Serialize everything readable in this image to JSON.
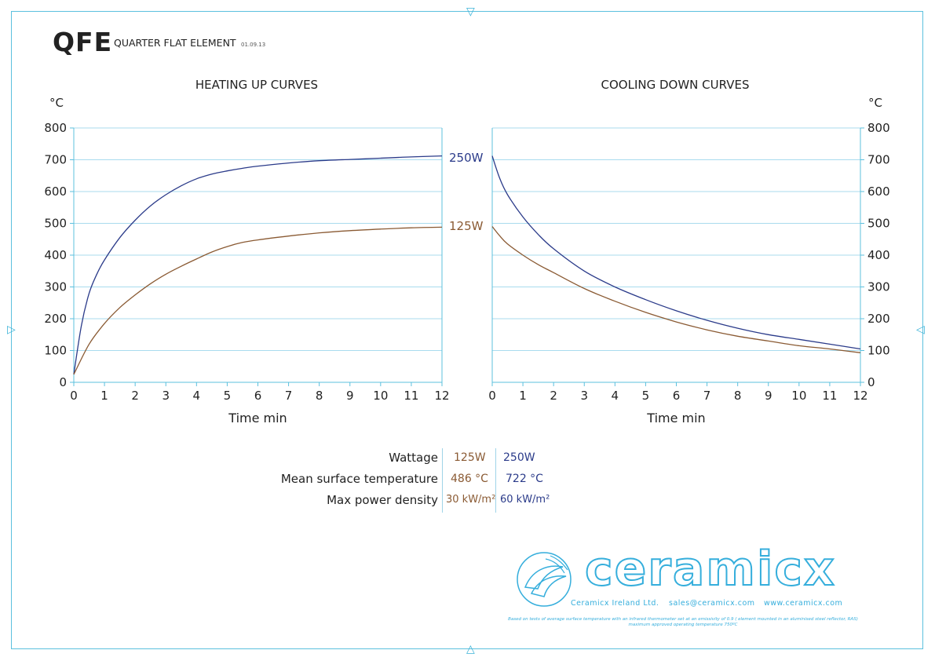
{
  "header": {
    "title": "QFE",
    "subtitle": "QUARTER FLAT ELEMENT",
    "date": "01.09.13"
  },
  "chart_data": [
    {
      "type": "line",
      "title": "HEATING UP CURVES",
      "xlabel": "Time min",
      "ylabel": "°C",
      "xlim": [
        0,
        12
      ],
      "ylim": [
        0,
        800
      ],
      "x_ticks": [
        "0",
        "1",
        "2",
        "3",
        "4",
        "5",
        "6",
        "7",
        "8",
        "9",
        "10",
        "11",
        "12"
      ],
      "y_ticks": [
        "0",
        "100",
        "200",
        "300",
        "400",
        "500",
        "600",
        "700",
        "800"
      ],
      "grid": true,
      "series": [
        {
          "name": "250W",
          "color": "#2b3b8a",
          "x": [
            0,
            0.25,
            0.5,
            0.75,
            1,
            1.5,
            2,
            2.5,
            3,
            3.5,
            4,
            4.5,
            5,
            5.5,
            6,
            7,
            8,
            9,
            10,
            11,
            12
          ],
          "y": [
            25,
            180,
            280,
            340,
            385,
            455,
            510,
            555,
            590,
            618,
            640,
            655,
            665,
            673,
            680,
            690,
            697,
            701,
            705,
            709,
            712
          ]
        },
        {
          "name": "125W",
          "color": "#8a5a33",
          "x": [
            0,
            0.5,
            1,
            1.5,
            2,
            2.5,
            3,
            3.5,
            4,
            4.5,
            5,
            5.5,
            6,
            7,
            8,
            9,
            10,
            11,
            12
          ],
          "y": [
            25,
            120,
            185,
            235,
            275,
            310,
            340,
            365,
            388,
            410,
            427,
            440,
            448,
            460,
            470,
            477,
            482,
            486,
            488
          ]
        }
      ]
    },
    {
      "type": "line",
      "title": "COOLING DOWN CURVES",
      "xlabel": "Time min",
      "ylabel": "°C",
      "xlim": [
        0,
        12
      ],
      "ylim": [
        0,
        800
      ],
      "x_ticks": [
        "0",
        "1",
        "2",
        "3",
        "4",
        "5",
        "6",
        "7",
        "8",
        "9",
        "10",
        "11",
        "12"
      ],
      "y_ticks": [
        "0",
        "100",
        "200",
        "300",
        "400",
        "500",
        "600",
        "700",
        "800"
      ],
      "grid": true,
      "series": [
        {
          "name": "250W",
          "color": "#2b3b8a",
          "x": [
            0,
            0.25,
            0.5,
            1,
            1.5,
            2,
            3,
            4,
            5,
            6,
            7,
            8,
            9,
            10,
            11,
            12
          ],
          "y": [
            712,
            640,
            590,
            520,
            465,
            420,
            350,
            300,
            260,
            225,
            195,
            170,
            150,
            135,
            120,
            105
          ]
        },
        {
          "name": "125W",
          "color": "#8a5a33",
          "x": [
            0,
            0.25,
            0.5,
            1,
            1.5,
            2,
            3,
            4,
            5,
            6,
            7,
            8,
            9,
            10,
            11,
            12
          ],
          "y": [
            490,
            460,
            435,
            400,
            370,
            345,
            295,
            255,
            220,
            190,
            165,
            145,
            130,
            115,
            105,
            93
          ]
        }
      ]
    }
  ],
  "series_labels": {
    "s250": "250W",
    "s125": "125W"
  },
  "table": {
    "rows": [
      {
        "label": "Wattage",
        "v125": "125W",
        "v250": "250W"
      },
      {
        "label": "Mean surface temperature",
        "v125": "486 °C",
        "v250": "722 °C"
      },
      {
        "label": "Max power density",
        "v125": "30 kW/m²",
        "v250": "60 kW/m²"
      }
    ]
  },
  "footer": {
    "brand": "ceramicx",
    "company": "Ceramicx Ireland Ltd.",
    "email": "sales@ceramicx.com",
    "website": "www.ceramicx.com",
    "disclaimer_1": "Based on tests of average surface temperature with an infrared thermometer set at an emissivity of 0.9 ( element mounted in an aluminised steel reflector, RAS)",
    "disclaimer_2": "maximum approved operating temperature 750ºC"
  },
  "colors": {
    "s250": "#2b3b8a",
    "s125": "#8a5a33",
    "accent": "#35aedc",
    "grid": "#a9dbee"
  }
}
